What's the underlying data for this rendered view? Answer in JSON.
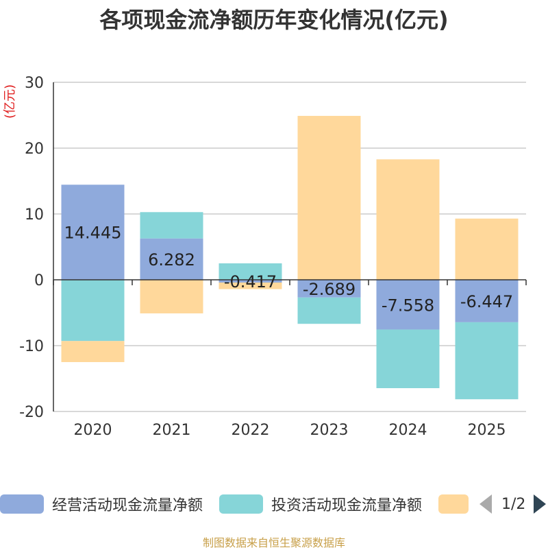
{
  "chart_data": {
    "type": "bar",
    "stacked": true,
    "title": "各项现金流净额历年变化情况(亿元)",
    "ylabel": "(亿元)",
    "xlabel": "",
    "categories": [
      "2020",
      "2021",
      "2022",
      "2023",
      "2024",
      "2025"
    ],
    "ylim": [
      -20,
      30
    ],
    "yticks": [
      30,
      20,
      10,
      0,
      -10,
      -20
    ],
    "series": [
      {
        "name": "经营活动现金流量净额",
        "color": "#8faadc",
        "values": [
          14.445,
          6.282,
          -0.417,
          -2.689,
          -7.558,
          -6.447
        ]
      },
      {
        "name": "投资活动现金流量净额",
        "color": "#86d5d8",
        "values": [
          -9.3,
          4.0,
          2.5,
          -4.0,
          -8.9,
          -11.7
        ]
      },
      {
        "name": "",
        "color": "#ffd89b",
        "values": [
          -3.2,
          -5.1,
          -1.0,
          24.9,
          18.3,
          9.3
        ]
      }
    ],
    "data_labels": [
      "14.445",
      "6.282",
      "-0.417",
      "-2.689",
      "-7.558",
      "-6.447"
    ],
    "grid": true,
    "legend_position": "bottom"
  },
  "legend": {
    "items": [
      "经营活动现金流量净额",
      "投资活动现金流量净额",
      ""
    ],
    "page": "1/2"
  },
  "source": "制图数据来自恒生聚源数据库"
}
